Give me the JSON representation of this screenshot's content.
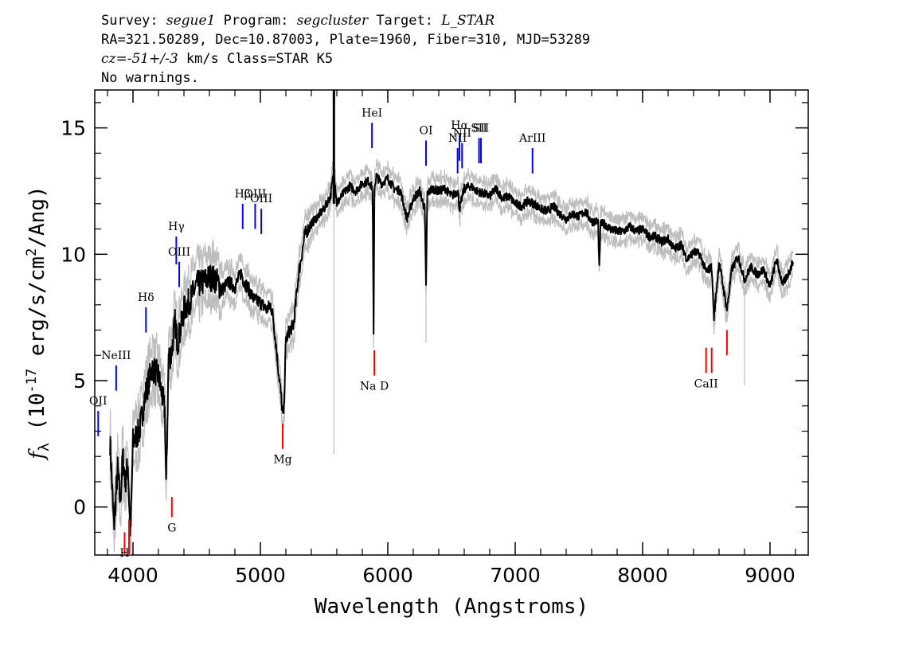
{
  "header": {
    "line1": [
      {
        "text": "Survey: ",
        "style": "plain"
      },
      {
        "text": "segue1",
        "style": "italic"
      },
      {
        "text": " Program: ",
        "style": "plain"
      },
      {
        "text": "segcluster",
        "style": "italic"
      },
      {
        "text": " Target: ",
        "style": "plain"
      },
      {
        "text": "L_STAR",
        "style": "italic"
      }
    ],
    "line2": "RA=321.50289, Dec=10.87003, Plate=1960, Fiber=310, MJD=53289",
    "line3": [
      {
        "text": "cz=-51+/-3",
        "style": "italic"
      },
      {
        "text": " km/s Class=STAR K5",
        "style": "plain"
      }
    ],
    "line4": "No warnings."
  },
  "chart_data": {
    "type": "line",
    "xlabel": "Wavelength (Angstroms)",
    "ylabel": "f_λ (10^-17 erg/s/cm^2/Ang)",
    "xlim": [
      3700,
      9300
    ],
    "ylim": [
      -1.9,
      16.5
    ],
    "xticks": [
      4000,
      5000,
      6000,
      7000,
      8000,
      9000
    ],
    "yticks": [
      0,
      5,
      10,
      15
    ],
    "series": [
      {
        "role": "flux",
        "color": "#000000",
        "x": [
          3820,
          3850,
          3880,
          3900,
          3920,
          3940,
          3960,
          3980,
          4000,
          4050,
          4100,
          4150,
          4200,
          4250,
          4260,
          4280,
          4300,
          4330,
          4350,
          4380,
          4400,
          4450,
          4500,
          4550,
          4600,
          4650,
          4700,
          4750,
          4800,
          4850,
          4870,
          4900,
          4950,
          5000,
          5050,
          5080,
          5100,
          5130,
          5160,
          5175,
          5185,
          5200,
          5230,
          5260,
          5300,
          5350,
          5400,
          5450,
          5500,
          5550,
          5577,
          5600,
          5650,
          5700,
          5750,
          5800,
          5850,
          5880,
          5889,
          5895,
          5910,
          5950,
          6000,
          6050,
          6100,
          6150,
          6200,
          6250,
          6290,
          6300,
          6310,
          6350,
          6400,
          6450,
          6500,
          6550,
          6563,
          6600,
          6650,
          6700,
          6750,
          6800,
          6850,
          6900,
          6950,
          7000,
          7050,
          7100,
          7150,
          7200,
          7250,
          7300,
          7350,
          7400,
          7450,
          7500,
          7550,
          7600,
          7650,
          7660,
          7670,
          7700,
          7750,
          7800,
          7850,
          7900,
          7950,
          8000,
          8050,
          8100,
          8150,
          8200,
          8250,
          8300,
          8350,
          8400,
          8450,
          8498,
          8542,
          8560,
          8600,
          8662,
          8700,
          8750,
          8800,
          8850,
          8900,
          8950,
          9000,
          9050,
          9100,
          9150,
          9180
        ],
        "y": [
          2.6,
          -0.8,
          1.5,
          0.2,
          2.0,
          1.0,
          1.7,
          -1.2,
          2.6,
          3.0,
          4.5,
          5.5,
          5.2,
          3.8,
          0.8,
          6.0,
          6.0,
          7.3,
          6.5,
          7.2,
          7.8,
          8.2,
          8.8,
          8.9,
          9.1,
          9.0,
          8.6,
          8.9,
          8.7,
          9.3,
          8.9,
          8.7,
          8.2,
          8.1,
          7.8,
          8.0,
          7.5,
          6.0,
          4.5,
          3.6,
          3.9,
          6.6,
          7.0,
          7.2,
          9.2,
          10.8,
          11.2,
          11.5,
          11.8,
          12.3,
          13.3,
          12.0,
          12.4,
          12.7,
          12.5,
          12.8,
          12.9,
          12.6,
          6.7,
          12.6,
          13.1,
          12.8,
          13.0,
          12.6,
          12.5,
          11.4,
          12.2,
          12.5,
          11.8,
          8.7,
          12.4,
          12.6,
          12.5,
          12.6,
          12.3,
          12.5,
          11.8,
          12.6,
          12.7,
          12.5,
          12.4,
          12.3,
          12.6,
          12.2,
          12.3,
          12.0,
          11.9,
          12.1,
          12.0,
          11.8,
          11.7,
          11.9,
          11.6,
          11.4,
          11.6,
          11.5,
          11.7,
          11.3,
          11.3,
          9.4,
          11.2,
          11.2,
          11.0,
          10.9,
          10.9,
          11.1,
          10.9,
          11.0,
          10.7,
          10.7,
          10.5,
          10.6,
          10.2,
          10.4,
          9.8,
          10.1,
          10.0,
          9.3,
          9.5,
          7.5,
          9.7,
          7.8,
          9.4,
          9.9,
          9.0,
          9.5,
          9.2,
          9.4,
          8.7,
          9.8,
          8.8,
          9.3,
          9.7
        ]
      },
      {
        "role": "error",
        "color": "#bebebe",
        "x": [
          5577,
          6300,
          8800
        ],
        "y": [
          2.1,
          6.5,
          4.8
        ]
      }
    ],
    "line_markers": {
      "emission_color": "#0000ff",
      "absorption_color": "#ff0000",
      "emission": [
        {
          "label": "OII",
          "x": 3727,
          "y": [
            2.8,
            3.8
          ]
        },
        {
          "label": "NeIII",
          "x": 3868,
          "y": [
            4.6,
            5.6
          ]
        },
        {
          "label": "Hδ",
          "x": 4102,
          "y": [
            6.9,
            7.9
          ]
        },
        {
          "label": "Hγ",
          "x": 4340,
          "y": [
            9.6,
            10.7
          ]
        },
        {
          "label": "OIII",
          "x": 4363,
          "y": [
            8.7,
            9.7
          ]
        },
        {
          "label": "Hβ",
          "x": 4861,
          "y": [
            11.0,
            12.0
          ]
        },
        {
          "label": "OIII",
          "x": 4959,
          "y": [
            11.0,
            12.0
          ]
        },
        {
          "label": "OIII",
          "x": 5007,
          "y": [
            10.8,
            11.8
          ]
        },
        {
          "label": "HeI",
          "x": 5876,
          "y": [
            14.2,
            15.2
          ]
        },
        {
          "label": "OI",
          "x": 6300,
          "y": [
            13.5,
            14.5
          ]
        },
        {
          "label": "NII",
          "x": 6548,
          "y": [
            13.2,
            14.2
          ]
        },
        {
          "label": "Hα",
          "x": 6563,
          "y": [
            13.7,
            14.7
          ]
        },
        {
          "label": "NII",
          "x": 6583,
          "y": [
            13.4,
            14.4
          ]
        },
        {
          "label": "SII",
          "x": 6716,
          "y": [
            13.6,
            14.6
          ]
        },
        {
          "label": "SII",
          "x": 6731,
          "y": [
            13.6,
            14.6
          ]
        },
        {
          "label": "ArIII",
          "x": 7136,
          "y": [
            13.2,
            14.2
          ]
        }
      ],
      "absorption": [
        {
          "label": "H",
          "x": 3934,
          "y": [
            -1.9,
            -1.0
          ]
        },
        {
          "label": "",
          "x": 3969,
          "y": [
            -1.9,
            -0.5
          ]
        },
        {
          "label": "G",
          "x": 4305,
          "y": [
            -0.4,
            0.4
          ]
        },
        {
          "label": "Mg",
          "x": 5175,
          "y": [
            2.3,
            3.3
          ]
        },
        {
          "label": "Na D",
          "x": 5894,
          "y": [
            5.2,
            6.2
          ]
        },
        {
          "label": "CaII",
          "x": 8498,
          "y": [
            5.3,
            6.3
          ]
        },
        {
          "label": "",
          "x": 8542,
          "y": [
            5.3,
            6.3
          ]
        },
        {
          "label": "",
          "x": 8662,
          "y": [
            6.0,
            7.0
          ]
        }
      ]
    }
  }
}
